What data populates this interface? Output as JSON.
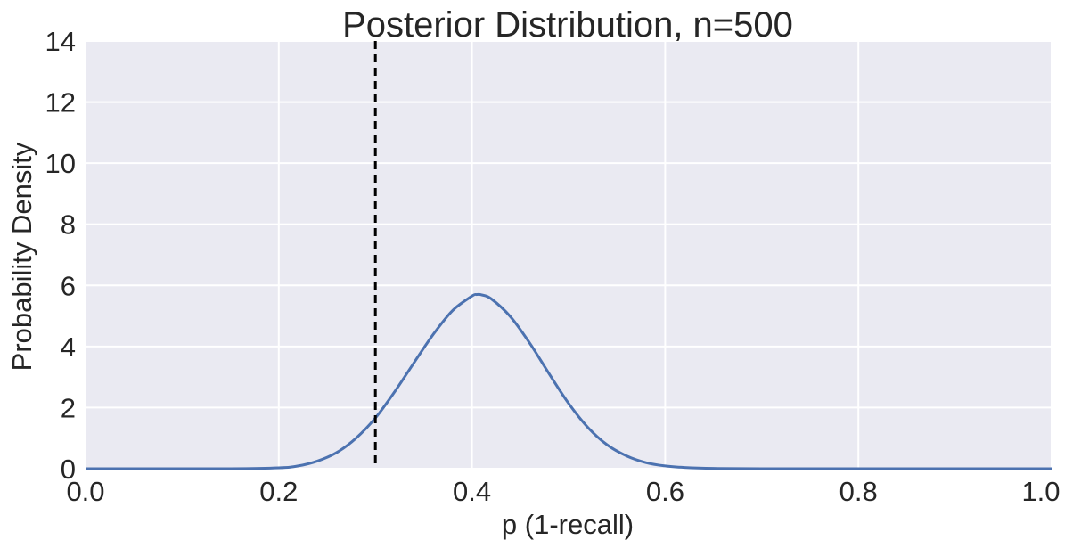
{
  "chart_data": {
    "type": "line",
    "title": "Posterior Distribution, n=500",
    "xlabel": "p (1-recall)",
    "ylabel": "Probability Density",
    "xlim": [
      0.0,
      1.0
    ],
    "ylim": [
      0,
      14
    ],
    "xticks": [
      0.0,
      0.2,
      0.4,
      0.6,
      0.8,
      1.0
    ],
    "xtick_labels": [
      "0.0",
      "0.2",
      "0.4",
      "0.6",
      "0.8",
      "1.0"
    ],
    "yticks": [
      0,
      2,
      4,
      6,
      8,
      10,
      12,
      14
    ],
    "ytick_labels": [
      "0",
      "2",
      "4",
      "6",
      "8",
      "10",
      "12",
      "14"
    ],
    "grid": true,
    "background_color": "#eaeaf2",
    "grid_color": "#ffffff",
    "series": [
      {
        "color": "#4c72b0",
        "x": [
          0.0,
          0.1,
          0.15,
          0.2,
          0.22,
          0.24,
          0.26,
          0.28,
          0.3,
          0.32,
          0.34,
          0.36,
          0.38,
          0.4,
          0.405,
          0.41,
          0.42,
          0.44,
          0.46,
          0.48,
          0.5,
          0.52,
          0.54,
          0.56,
          0.58,
          0.6,
          0.62,
          0.65,
          0.7,
          0.8,
          1.0
        ],
        "y": [
          0.0,
          0.0,
          0.0,
          0.03,
          0.09,
          0.25,
          0.53,
          1.0,
          1.66,
          2.52,
          3.47,
          4.4,
          5.18,
          5.65,
          5.7,
          5.69,
          5.56,
          4.97,
          4.1,
          3.1,
          2.14,
          1.35,
          0.78,
          0.42,
          0.2,
          0.09,
          0.04,
          0.01,
          0.0,
          0.0,
          0.0
        ]
      }
    ],
    "reference_line": {
      "x": 0.3,
      "style": "dashed",
      "color": "#000000"
    }
  }
}
